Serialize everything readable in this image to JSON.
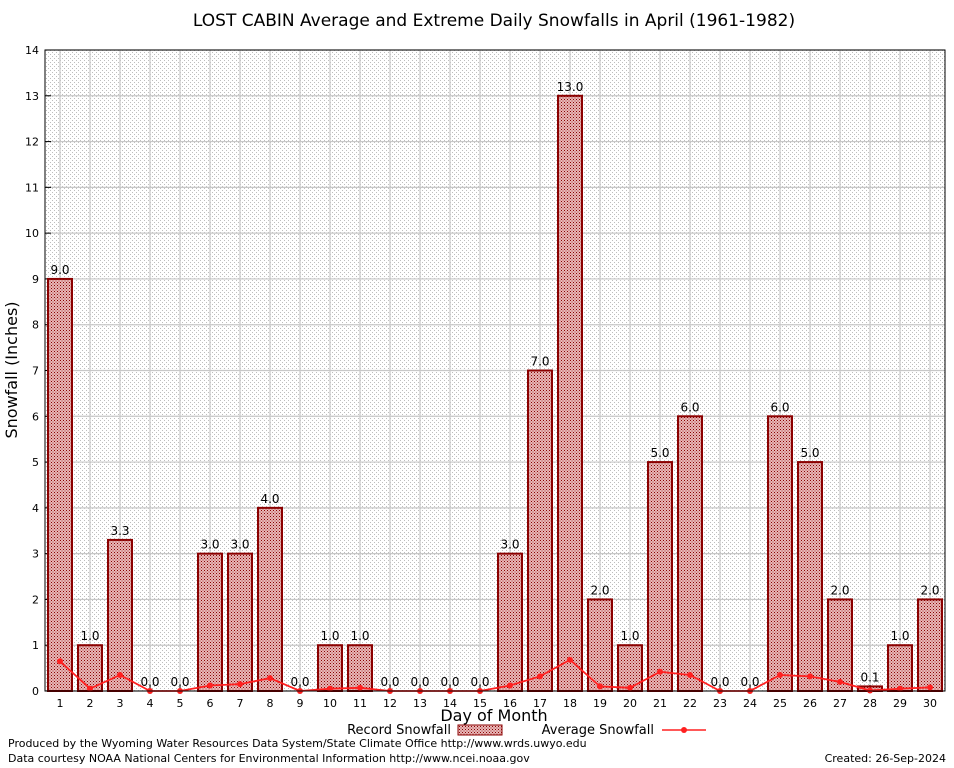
{
  "chart_data": {
    "type": "bar",
    "title": "LOST CABIN Average and Extreme Daily Snowfalls in April (1961-1982)",
    "xlabel": "Day of Month",
    "ylabel": "Snowfall (Inches)",
    "ylim": [
      0,
      14
    ],
    "yticks": [
      "0",
      "1",
      "2",
      "3",
      "4",
      "5",
      "6",
      "7",
      "8",
      "9",
      "10",
      "11",
      "12",
      "13",
      "14"
    ],
    "categories": [
      "1",
      "2",
      "3",
      "4",
      "5",
      "6",
      "7",
      "8",
      "9",
      "10",
      "11",
      "12",
      "13",
      "14",
      "15",
      "16",
      "17",
      "18",
      "19",
      "20",
      "21",
      "22",
      "23",
      "24",
      "25",
      "26",
      "27",
      "28",
      "29",
      "30"
    ],
    "series": [
      {
        "name": "Record Snowfall",
        "kind": "bar",
        "color": "#8b0000",
        "values": [
          9.0,
          1.0,
          3.3,
          0.0,
          0.0,
          3.0,
          3.0,
          4.0,
          0.0,
          1.0,
          1.0,
          0.0,
          0.0,
          0.0,
          0.0,
          3.0,
          7.0,
          13.0,
          2.0,
          1.0,
          5.0,
          6.0,
          0.0,
          0.0,
          6.0,
          5.0,
          2.0,
          0.1,
          1.0,
          2.0
        ],
        "labels": [
          "9.0",
          "1.0",
          "3.3",
          "0.0",
          "0.0",
          "3.0",
          "3.0",
          "4.0",
          "0.0",
          "1.0",
          "1.0",
          "0.0",
          "0.0",
          "0.0",
          "0.0",
          "3.0",
          "7.0",
          "13.0",
          "2.0",
          "1.0",
          "5.0",
          "6.0",
          "0.0",
          "0.0",
          "6.0",
          "5.0",
          "2.0",
          "0.1",
          "1.0",
          "2.0"
        ]
      },
      {
        "name": "Average Snowfall",
        "kind": "line",
        "color": "#ff2020",
        "values": [
          0.65,
          0.05,
          0.35,
          0.0,
          0.0,
          0.12,
          0.15,
          0.28,
          0.0,
          0.05,
          0.07,
          0.0,
          0.0,
          0.0,
          0.0,
          0.12,
          0.32,
          0.68,
          0.1,
          0.07,
          0.42,
          0.35,
          0.0,
          0.0,
          0.35,
          0.32,
          0.2,
          0.01,
          0.05,
          0.08
        ]
      }
    ],
    "grid": true,
    "legend_position": "bottom-center"
  },
  "footer": {
    "produced_by": "Produced by the Wyoming Water Resources Data System/State Climate Office http://www.wrds.uwyo.edu",
    "courtesy": "Data courtesy NOAA National Centers for Environmental Information http://www.ncei.noaa.gov",
    "created": "Created:  26-Sep-2024"
  }
}
